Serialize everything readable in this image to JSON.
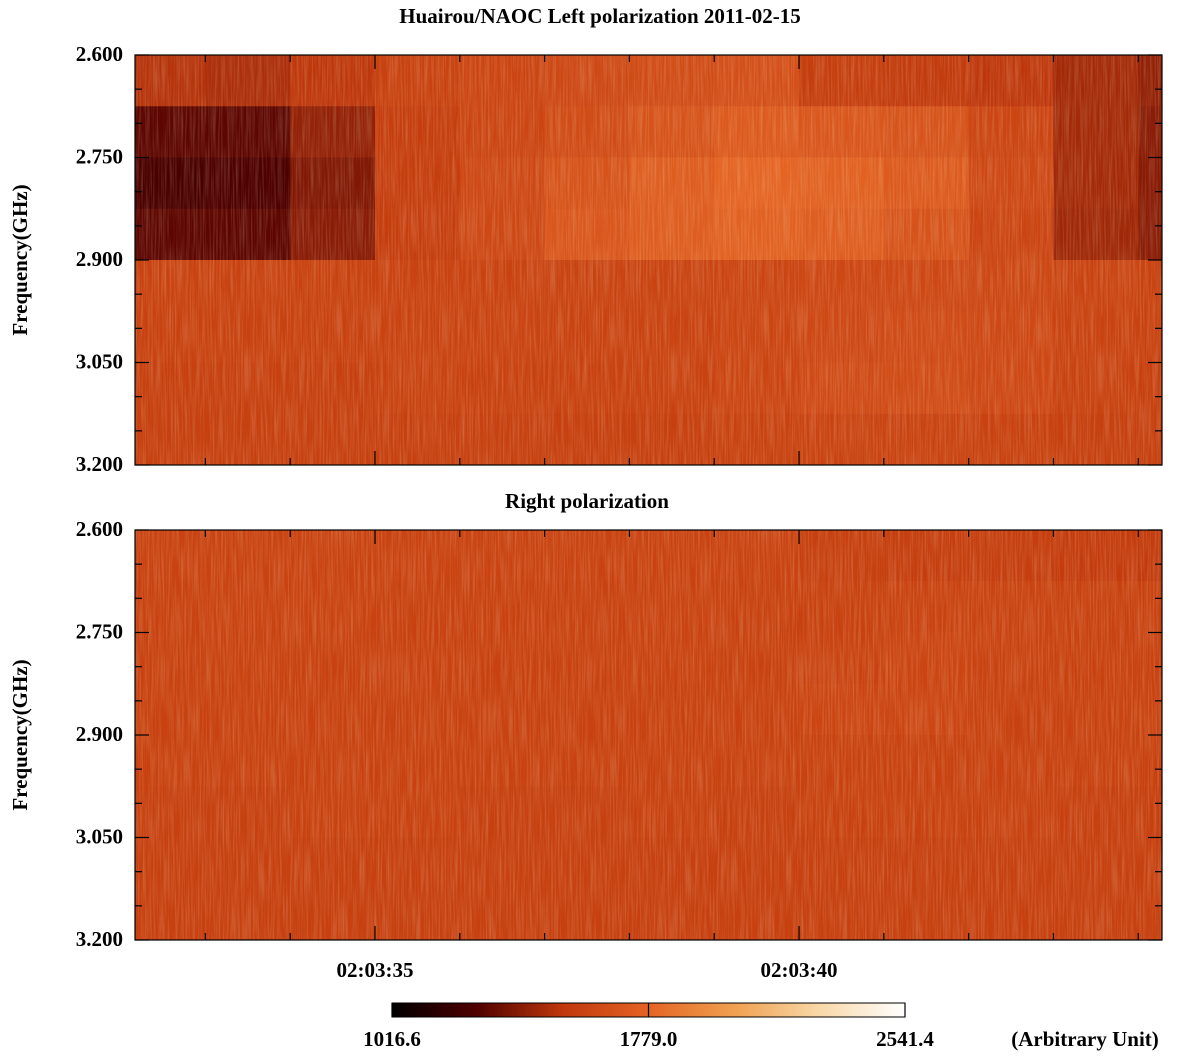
{
  "chart_data": [
    {
      "type": "heatmap",
      "title": "Huairou/NAOC  Left polarization  2011-02-15",
      "ylabel": "Frequency(GHz)",
      "xlim": [
        32.17,
        44.28
      ],
      "ylim": [
        3.2,
        2.6
      ],
      "yticks": [
        {
          "value": 2.6,
          "label": "2.600"
        },
        {
          "value": 2.75,
          "label": "2.750"
        },
        {
          "value": 2.9,
          "label": "2.900"
        },
        {
          "value": 3.05,
          "label": "3.050"
        },
        {
          "value": 3.2,
          "label": "3.200"
        }
      ],
      "yminorticks": [
        2.65,
        2.7,
        2.8,
        2.85,
        2.95,
        3.0,
        3.1,
        3.15
      ],
      "x_bins": [
        32.17,
        33,
        34,
        35,
        36,
        37,
        38,
        39,
        40,
        41,
        42,
        43,
        44,
        44.28
      ],
      "y_bins": [
        2.6,
        2.675,
        2.75,
        2.825,
        2.9,
        2.975,
        3.05,
        3.125,
        3.2
      ],
      "values": [
        [
          1500,
          1480,
          1520,
          1580,
          1600,
          1620,
          1640,
          1660,
          1560,
          1540,
          1520,
          1460,
          1420
        ],
        [
          1300,
          1300,
          1420,
          1560,
          1600,
          1640,
          1680,
          1720,
          1700,
          1680,
          1600,
          1460,
          1400
        ],
        [
          1250,
          1260,
          1380,
          1560,
          1620,
          1680,
          1740,
          1780,
          1760,
          1720,
          1620,
          1460,
          1400
        ],
        [
          1300,
          1300,
          1400,
          1560,
          1620,
          1700,
          1740,
          1760,
          1740,
          1680,
          1600,
          1450,
          1400
        ],
        [
          1580,
          1580,
          1580,
          1590,
          1590,
          1590,
          1590,
          1600,
          1620,
          1620,
          1610,
          1590,
          1580
        ],
        [
          1580,
          1580,
          1580,
          1590,
          1590,
          1590,
          1590,
          1600,
          1620,
          1630,
          1620,
          1590,
          1580
        ],
        [
          1570,
          1570,
          1570,
          1580,
          1580,
          1580,
          1580,
          1600,
          1630,
          1640,
          1620,
          1580,
          1570
        ],
        [
          1570,
          1570,
          1570,
          1570,
          1570,
          1570,
          1570,
          1580,
          1590,
          1590,
          1580,
          1570,
          1570
        ]
      ]
    },
    {
      "type": "heatmap",
      "title": "Right polarization",
      "ylabel": "Frequency(GHz)",
      "xlim": [
        32.17,
        44.28
      ],
      "xticks": [
        {
          "value": 35,
          "label": "02:03:35"
        },
        {
          "value": 40,
          "label": "02:03:40"
        }
      ],
      "xminorticks": [
        33,
        34,
        36,
        37,
        38,
        39,
        41,
        42,
        43,
        44
      ],
      "ylim": [
        3.2,
        2.6
      ],
      "yticks": [
        {
          "value": 2.6,
          "label": "2.600"
        },
        {
          "value": 2.75,
          "label": "2.750"
        },
        {
          "value": 2.9,
          "label": "2.900"
        },
        {
          "value": 3.05,
          "label": "3.050"
        },
        {
          "value": 3.2,
          "label": "3.200"
        }
      ],
      "yminorticks": [
        2.65,
        2.7,
        2.8,
        2.85,
        2.95,
        3.0,
        3.1,
        3.15
      ],
      "x_bins": [
        32.17,
        33,
        34,
        35,
        36,
        37,
        38,
        39,
        40,
        41,
        42,
        43,
        44,
        44.28
      ],
      "y_bins": [
        2.6,
        2.675,
        2.75,
        2.825,
        2.9,
        2.975,
        3.05,
        3.125,
        3.2
      ],
      "values": [
        [
          1590,
          1590,
          1590,
          1590,
          1590,
          1590,
          1590,
          1590,
          1570,
          1560,
          1560,
          1550,
          1540
        ],
        [
          1580,
          1590,
          1590,
          1580,
          1580,
          1580,
          1590,
          1580,
          1580,
          1590,
          1590,
          1580,
          1580
        ],
        [
          1580,
          1590,
          1580,
          1580,
          1580,
          1580,
          1590,
          1580,
          1590,
          1600,
          1590,
          1580,
          1580
        ],
        [
          1580,
          1580,
          1580,
          1580,
          1580,
          1580,
          1580,
          1580,
          1600,
          1600,
          1580,
          1580,
          1580
        ],
        [
          1580,
          1580,
          1580,
          1580,
          1580,
          1580,
          1580,
          1580,
          1580,
          1580,
          1580,
          1580,
          1580
        ],
        [
          1570,
          1570,
          1580,
          1580,
          1570,
          1570,
          1580,
          1570,
          1580,
          1580,
          1580,
          1570,
          1570
        ],
        [
          1570,
          1570,
          1570,
          1570,
          1570,
          1570,
          1570,
          1570,
          1570,
          1570,
          1570,
          1570,
          1570
        ],
        [
          1570,
          1570,
          1570,
          1570,
          1570,
          1570,
          1570,
          1570,
          1570,
          1570,
          1570,
          1570,
          1570
        ]
      ]
    }
  ],
  "colorbar": {
    "limits": [
      1016.6,
      2541.4
    ],
    "ticks": [
      1016.6,
      {
        "value": 1779,
        "label": "1779.0"
      },
      2541.4
    ],
    "label": "(Arbitrary Unit)",
    "colormap": [
      "#000000",
      "#500000",
      "#c0380c",
      "#e46424",
      "#f0a050",
      "#f8d8a8",
      "#ffffff"
    ]
  }
}
